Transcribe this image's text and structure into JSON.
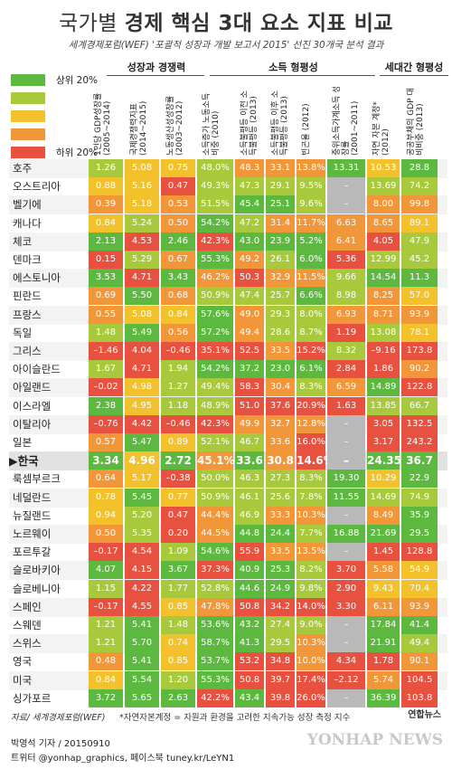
{
  "title_main": "국가별 ",
  "title_bold": "경제 핵심 3대 요소 지표 비교",
  "subtitle": "세계경제포럼(WEF) '포괄적 성장과 개발 보고서 2015' 선진 30개국 분석 결과",
  "groups": [
    "성장과 경쟁력",
    "소득 형평성",
    "세대간 형평성"
  ],
  "legend": {
    "top": "상위 20%",
    "bottom": "하위 20%"
  },
  "colors": {
    "green": "#5cb83e",
    "lime": "#a9c93d",
    "yellow": "#f2c12b",
    "orange": "#f2963a",
    "red": "#e8513f",
    "gray": "#b9b9b9"
  },
  "chart_data": {
    "type": "table",
    "columns": [
      "1인당 GDP성장률 (2005~2014)",
      "국제경쟁력지표 (2014~2015)",
      "노동생산성성장률 (2003~2012)",
      "소득증가 노동소득 비중 (2010)",
      "소득불평등 이전 소득불평등 (2013)",
      "소득불평등 이후 소득불평등 (2013)",
      "빈곤율 (2012)",
      "중위소득가계소득 성장률 (2001~2011)",
      "자연 자본 계정* (2012)",
      "공공부채의 GDP 대비비중 (2013)"
    ],
    "rows": [
      {
        "country": "호주",
        "values": [
          "1.26",
          "5.08",
          "0.75",
          "48.0%",
          "48.3",
          "33.1",
          "13.8%",
          "13.31",
          "10.53",
          "28.8"
        ],
        "colors": [
          "lime",
          "yellow",
          "yellow",
          "lime",
          "orange",
          "orange",
          "orange",
          "green",
          "yellow",
          "green"
        ]
      },
      {
        "country": "오스트리아",
        "values": [
          "0.88",
          "5.16",
          "0.47",
          "49.3%",
          "47.3",
          "29.1",
          "9.5%",
          "–",
          "13.69",
          "74.2"
        ],
        "colors": [
          "yellow",
          "yellow",
          "red",
          "lime",
          "lime",
          "lime",
          "lime",
          "gray",
          "lime",
          "lime"
        ]
      },
      {
        "country": "벨기에",
        "values": [
          "0.39",
          "5.18",
          "0.53",
          "51.5%",
          "45.4",
          "25.1",
          "9.6%",
          "–",
          "8.00",
          "99.8"
        ],
        "colors": [
          "orange",
          "yellow",
          "orange",
          "lime",
          "green",
          "green",
          "lime",
          "gray",
          "orange",
          "orange"
        ]
      },
      {
        "country": "캐나다",
        "values": [
          "0.84",
          "5.24",
          "0.50",
          "54.2%",
          "47.2",
          "31.4",
          "11.7%",
          "6.63",
          "8.65",
          "89.1"
        ],
        "colors": [
          "yellow",
          "lime",
          "orange",
          "green",
          "lime",
          "orange",
          "orange",
          "orange",
          "orange",
          "yellow"
        ]
      },
      {
        "country": "체코",
        "values": [
          "2.13",
          "4.53",
          "2.46",
          "42.3%",
          "43.0",
          "23.9",
          "5.2%",
          "6.41",
          "4.05",
          "47.9"
        ],
        "colors": [
          "green",
          "red",
          "green",
          "red",
          "green",
          "green",
          "green",
          "orange",
          "red",
          "lime"
        ]
      },
      {
        "country": "덴마크",
        "values": [
          "0.15",
          "5.29",
          "0.67",
          "55.3%",
          "49.2",
          "26.1",
          "6.0%",
          "5.36",
          "12.99",
          "45.2"
        ],
        "colors": [
          "red",
          "lime",
          "orange",
          "green",
          "orange",
          "lime",
          "green",
          "red",
          "lime",
          "lime"
        ]
      },
      {
        "country": "에스토니아",
        "values": [
          "3.53",
          "4.71",
          "3.43",
          "46.2%",
          "50.3",
          "32.9",
          "11.5%",
          "9.66",
          "14.54",
          "11.3"
        ],
        "colors": [
          "green",
          "red",
          "green",
          "orange",
          "red",
          "orange",
          "orange",
          "lime",
          "green",
          "green"
        ]
      },
      {
        "country": "핀란드",
        "values": [
          "0.69",
          "5.50",
          "0.68",
          "50.9%",
          "47.4",
          "25.7",
          "6.6%",
          "8.98",
          "8.25",
          "57.0"
        ],
        "colors": [
          "orange",
          "green",
          "orange",
          "lime",
          "lime",
          "lime",
          "green",
          "lime",
          "orange",
          "yellow"
        ]
      },
      {
        "country": "프랑스",
        "values": [
          "0.55",
          "5.08",
          "0.84",
          "57.6%",
          "49.0",
          "29.3",
          "8.0%",
          "6.93",
          "8.71",
          "93.9"
        ],
        "colors": [
          "orange",
          "yellow",
          "yellow",
          "green",
          "orange",
          "lime",
          "lime",
          "orange",
          "orange",
          "orange"
        ]
      },
      {
        "country": "독일",
        "values": [
          "1.48",
          "5.49",
          "0.56",
          "57.2%",
          "49.4",
          "28.6",
          "8.7%",
          "1.19",
          "13.08",
          "78.1"
        ],
        "colors": [
          "lime",
          "green",
          "orange",
          "green",
          "orange",
          "lime",
          "lime",
          "red",
          "lime",
          "yellow"
        ]
      },
      {
        "country": "그리스",
        "values": [
          "–1.46",
          "4.04",
          "–0.46",
          "35.1%",
          "52.5",
          "33.5",
          "15.2%",
          "8.32",
          "–9.16",
          "173.8"
        ],
        "colors": [
          "red",
          "red",
          "red",
          "red",
          "red",
          "orange",
          "red",
          "lime",
          "red",
          "red"
        ]
      },
      {
        "country": "아이슬란드",
        "values": [
          "1.67",
          "4.71",
          "1.94",
          "54.2%",
          "37.2",
          "23.0",
          "6.1%",
          "2.84",
          "1.86",
          "90.2"
        ],
        "colors": [
          "lime",
          "red",
          "lime",
          "green",
          "green",
          "green",
          "green",
          "red",
          "red",
          "orange"
        ]
      },
      {
        "country": "아일랜드",
        "values": [
          "–0.02",
          "4.98",
          "1.27",
          "49.4%",
          "58.3",
          "30.4",
          "8.3%",
          "6.59",
          "14.89",
          "122.8"
        ],
        "colors": [
          "red",
          "yellow",
          "lime",
          "lime",
          "red",
          "orange",
          "lime",
          "orange",
          "green",
          "red"
        ]
      },
      {
        "country": "이스라엘",
        "values": [
          "2.38",
          "4.95",
          "1.18",
          "48.9%",
          "51.0",
          "37.6",
          "20.9%",
          "1.63",
          "13.85",
          "66.7"
        ],
        "colors": [
          "green",
          "yellow",
          "lime",
          "lime",
          "red",
          "red",
          "red",
          "red",
          "lime",
          "lime"
        ]
      },
      {
        "country": "이탈리아",
        "values": [
          "–0.76",
          "4.42",
          "–0.46",
          "42.3%",
          "49.9",
          "32.7",
          "12.8%",
          "–",
          "3.05",
          "132.5"
        ],
        "colors": [
          "red",
          "red",
          "red",
          "red",
          "orange",
          "orange",
          "orange",
          "gray",
          "red",
          "red"
        ]
      },
      {
        "country": "일본",
        "values": [
          "0.57",
          "5.47",
          "0.89",
          "52.1%",
          "46.7",
          "33.6",
          "16.0%",
          "–",
          "3.17",
          "243.2"
        ],
        "colors": [
          "orange",
          "green",
          "yellow",
          "lime",
          "lime",
          "orange",
          "red",
          "gray",
          "red",
          "red"
        ]
      },
      {
        "country": "한국",
        "values": [
          "3.34",
          "4.96",
          "2.72",
          "45.1%",
          "33.6",
          "30.8",
          "14.6%",
          "–",
          "24.35",
          "36.7"
        ],
        "colors": [
          "green",
          "yellow",
          "green",
          "orange",
          "green",
          "orange",
          "red",
          "gray",
          "green",
          "green"
        ],
        "highlight": true
      },
      {
        "country": "룩셈부르크",
        "values": [
          "0.64",
          "5.17",
          "–0.38",
          "50.0%",
          "46.3",
          "27.3",
          "8.3%",
          "19.30",
          "10.29",
          "22.9"
        ],
        "colors": [
          "orange",
          "yellow",
          "red",
          "lime",
          "lime",
          "lime",
          "lime",
          "green",
          "yellow",
          "green"
        ]
      },
      {
        "country": "네덜란드",
        "values": [
          "0.78",
          "5.45",
          "0.77",
          "50.9%",
          "46.1",
          "25.6",
          "7.8%",
          "11.55",
          "14.69",
          "74.9"
        ],
        "colors": [
          "yellow",
          "green",
          "yellow",
          "lime",
          "lime",
          "lime",
          "lime",
          "green",
          "lime",
          "lime"
        ]
      },
      {
        "country": "뉴질랜드",
        "values": [
          "0.94",
          "5.20",
          "0.47",
          "44.4%",
          "46.9",
          "33.3",
          "10.3%",
          "–",
          "8.49",
          "35.9"
        ],
        "colors": [
          "yellow",
          "lime",
          "red",
          "orange",
          "lime",
          "orange",
          "orange",
          "gray",
          "orange",
          "green"
        ]
      },
      {
        "country": "노르웨이",
        "values": [
          "0.50",
          "5.35",
          "0.20",
          "44.5%",
          "44.8",
          "24.4",
          "7.7%",
          "16.88",
          "21.69",
          "29.5"
        ],
        "colors": [
          "orange",
          "lime",
          "red",
          "orange",
          "green",
          "green",
          "lime",
          "green",
          "green",
          "green"
        ]
      },
      {
        "country": "포르투갈",
        "values": [
          "–0.17",
          "4.54",
          "1.09",
          "54.6%",
          "55.9",
          "33.5",
          "13.5%",
          "–",
          "1.45",
          "128.8"
        ],
        "colors": [
          "red",
          "red",
          "lime",
          "green",
          "red",
          "orange",
          "orange",
          "gray",
          "red",
          "red"
        ]
      },
      {
        "country": "슬로바키아",
        "values": [
          "4.07",
          "4.15",
          "3.67",
          "37.3%",
          "40.9",
          "25.3",
          "8.2%",
          "3.70",
          "5.58",
          "54.9"
        ],
        "colors": [
          "green",
          "red",
          "green",
          "red",
          "green",
          "green",
          "lime",
          "red",
          "orange",
          "yellow"
        ]
      },
      {
        "country": "슬로베니아",
        "values": [
          "1.15",
          "4.22",
          "1.77",
          "52.8%",
          "44.6",
          "24.9",
          "9.8%",
          "2.90",
          "9.43",
          "70.4"
        ],
        "colors": [
          "lime",
          "red",
          "lime",
          "lime",
          "green",
          "green",
          "lime",
          "red",
          "yellow",
          "yellow"
        ]
      },
      {
        "country": "스페인",
        "values": [
          "–0.17",
          "4.55",
          "0.85",
          "47.8%",
          "50.8",
          "34.2",
          "14.0%",
          "3.30",
          "6.11",
          "93.9"
        ],
        "colors": [
          "red",
          "red",
          "yellow",
          "orange",
          "red",
          "red",
          "red",
          "red",
          "orange",
          "orange"
        ]
      },
      {
        "country": "스웨덴",
        "values": [
          "1.21",
          "5.41",
          "1.48",
          "53.6%",
          "43.2",
          "27.4",
          "9.0%",
          "–",
          "17.84",
          "41.4"
        ],
        "colors": [
          "lime",
          "green",
          "lime",
          "green",
          "green",
          "lime",
          "lime",
          "gray",
          "green",
          "green"
        ]
      },
      {
        "country": "스위스",
        "values": [
          "1.21",
          "5.70",
          "0.74",
          "58.7%",
          "41.3",
          "29.5",
          "10.3%",
          "–",
          "21.91",
          "49.4"
        ],
        "colors": [
          "lime",
          "green",
          "yellow",
          "green",
          "green",
          "lime",
          "orange",
          "gray",
          "green",
          "lime"
        ]
      },
      {
        "country": "영국",
        "values": [
          "0.48",
          "5.41",
          "0.85",
          "53.7%",
          "53.2",
          "34.8",
          "10.0%",
          "4.34",
          "1.78",
          "90.1"
        ],
        "colors": [
          "orange",
          "green",
          "yellow",
          "green",
          "red",
          "red",
          "orange",
          "red",
          "red",
          "orange"
        ]
      },
      {
        "country": "미국",
        "values": [
          "0.84",
          "5.54",
          "1.20",
          "55.3%",
          "50.8",
          "39.7",
          "17.4%",
          "–2.12",
          "5.74",
          "104.5"
        ],
        "colors": [
          "yellow",
          "green",
          "lime",
          "green",
          "red",
          "red",
          "red",
          "red",
          "orange",
          "red"
        ]
      },
      {
        "country": "싱가포르",
        "values": [
          "3.72",
          "5.65",
          "2.63",
          "42.2%",
          "43.4",
          "39.8",
          "26.0%",
          "–",
          "36.39",
          "103.8"
        ],
        "colors": [
          "green",
          "green",
          "green",
          "red",
          "green",
          "red",
          "red",
          "gray",
          "green",
          "red"
        ]
      }
    ]
  },
  "footer": {
    "source": "자료/ 세계경제포럼(WEF)",
    "note": "*자연자본계정 = 자원과 환경을 고려한 지속가능 성장 측정 지수",
    "logo": "연합뉴스",
    "credit": "박영석 기자 / 20150910",
    "social": "트위터 @yonhap_graphics, 페이스북 tuney.kr/LeYN1",
    "watermark": "YONHAP NEWS"
  }
}
